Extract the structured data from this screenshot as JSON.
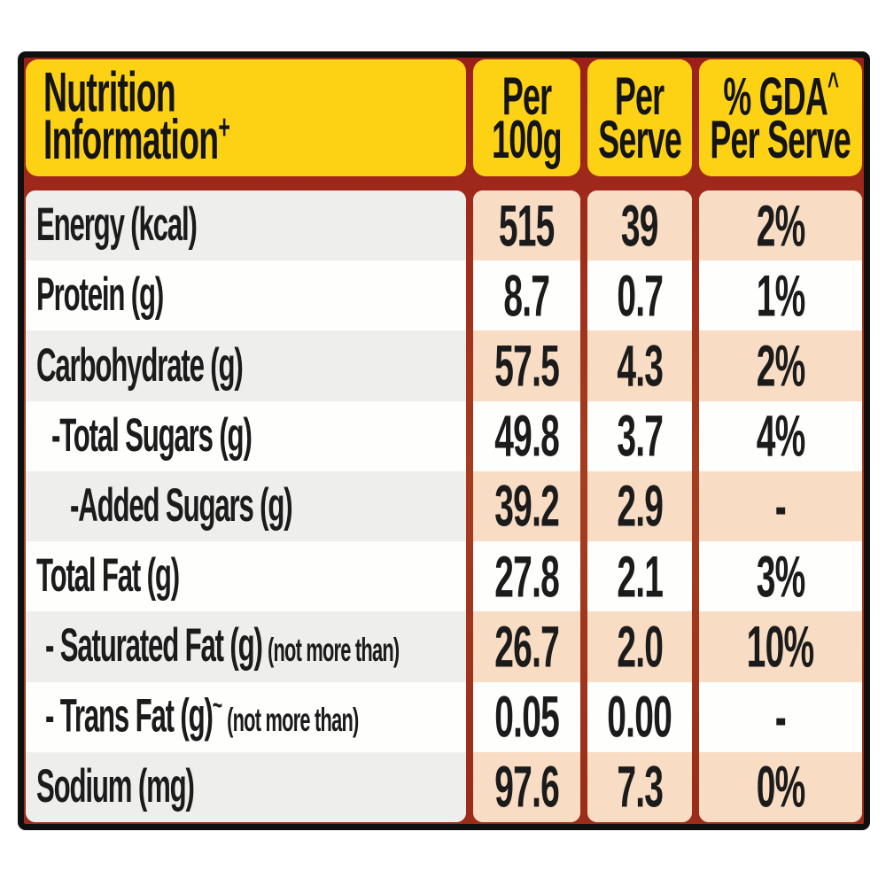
{
  "header": {
    "title_line1": "Nutrition",
    "title_line2": "Information",
    "title_superscript": "+",
    "per_100g": {
      "line1": "Per",
      "line2": "100g"
    },
    "per_serve": {
      "line1": "Per",
      "line2": "Serve"
    },
    "gda": {
      "line1": "% GDA",
      "superscript": "^",
      "line2": "Per Serve"
    }
  },
  "rows": [
    {
      "label": "Energy (kcal)",
      "per_100g": "515",
      "per_serve": "39",
      "gda_per_serve": "2%"
    },
    {
      "label": "Protein (g)",
      "per_100g": "8.7",
      "per_serve": "0.7",
      "gda_per_serve": "1%"
    },
    {
      "label": "Carbohydrate (g)",
      "per_100g": "57.5",
      "per_serve": "4.3",
      "gda_per_serve": "2%"
    },
    {
      "label": "-Total Sugars (g)",
      "per_100g": "49.8",
      "per_serve": "3.7",
      "gda_per_serve": "4%"
    },
    {
      "label": "-Added Sugars (g)",
      "per_100g": "39.2",
      "per_serve": "2.9",
      "gda_per_serve": "-"
    },
    {
      "label": "Total Fat (g)",
      "per_100g": "27.8",
      "per_serve": "2.1",
      "gda_per_serve": "3%"
    },
    {
      "label": "- Saturated Fat (g)",
      "note": "(not more than)",
      "per_100g": "26.7",
      "per_serve": "2.0",
      "gda_per_serve": "10%"
    },
    {
      "label": "- Trans Fat (g)",
      "label_superscript": "~",
      "note": "(not more than)",
      "per_100g": "0.05",
      "per_serve": "0.00",
      "gda_per_serve": "-"
    },
    {
      "label": "Sodium (mg)",
      "per_100g": "97.6",
      "per_serve": "7.3",
      "gda_per_serve": "0%"
    }
  ],
  "colors": {
    "header_yellow": "#fdd215",
    "background_maroon": "#9c2d1a",
    "value_row_peach": "#f8dcc3",
    "label_row_gray": "#eeeeec",
    "row_white": "#fefefd",
    "outer_border_black": "#0f0f0f",
    "text_black": "#1b1b1b"
  }
}
